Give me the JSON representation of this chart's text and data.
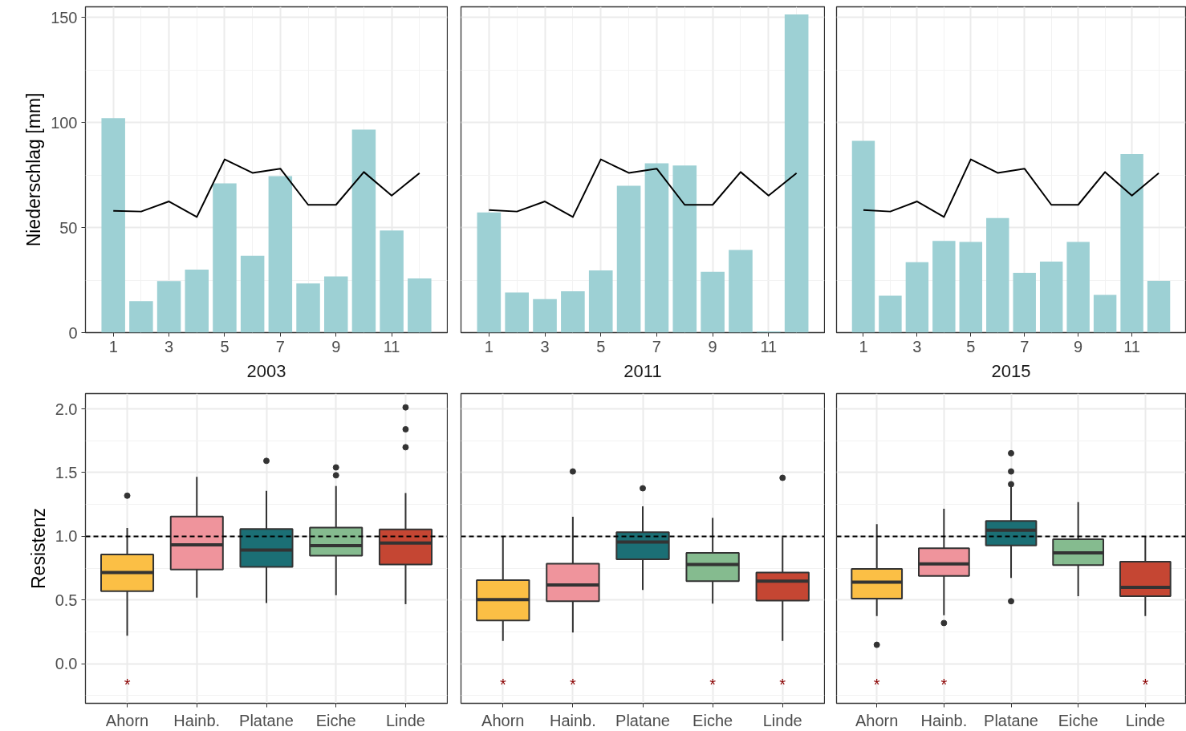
{
  "chart_data": [
    {
      "type": "bar",
      "title": "2003",
      "ylabel": "Niederschlag [mm]",
      "x": [
        1,
        2,
        3,
        4,
        5,
        6,
        7,
        8,
        9,
        10,
        11,
        12
      ],
      "xlim": [
        0,
        13
      ],
      "xticks": [
        1,
        3,
        5,
        7,
        9,
        11
      ],
      "ylim": [
        0,
        155
      ],
      "yticks": [
        0,
        50,
        100,
        150
      ],
      "grid": true,
      "series": [
        {
          "type": "bar",
          "color": "#9dd0d4",
          "values": [
            102,
            15,
            24.5,
            30,
            71,
            36.6,
            74.4,
            23.4,
            26.7,
            96.6,
            48.6,
            25.8
          ]
        },
        {
          "type": "line",
          "color": "#000000",
          "values": [
            57.9,
            57.6,
            62.4,
            55,
            82.4,
            76,
            78,
            60.8,
            60.8,
            76.4,
            65.2,
            75.9
          ]
        }
      ]
    },
    {
      "type": "bar",
      "title": "2011",
      "x": [
        1,
        2,
        3,
        4,
        5,
        6,
        7,
        8,
        9,
        10,
        11,
        12
      ],
      "xlim": [
        0,
        13
      ],
      "xticks": [
        1,
        3,
        5,
        7,
        9,
        11
      ],
      "ylim": [
        0,
        155
      ],
      "yticks": [
        0,
        50,
        100,
        150
      ],
      "grid": true,
      "tick_labels": "x",
      "series": [
        {
          "type": "bar",
          "color": "#9dd0d4",
          "values": [
            57.2,
            19.1,
            15.9,
            19.7,
            29.6,
            69.9,
            80.6,
            79.5,
            28.9,
            39.3,
            0.6,
            151.4
          ]
        },
        {
          "type": "line",
          "color": "#000000",
          "values": [
            58.3,
            57.6,
            62.4,
            55,
            82.4,
            76,
            78,
            60.8,
            60.8,
            76.4,
            65.2,
            75.9
          ]
        }
      ]
    },
    {
      "type": "bar",
      "title": "2015",
      "x": [
        1,
        2,
        3,
        4,
        5,
        6,
        7,
        8,
        9,
        10,
        11,
        12
      ],
      "xlim": [
        0,
        13
      ],
      "xticks": [
        1,
        3,
        5,
        7,
        9,
        11
      ],
      "ylim": [
        0,
        155
      ],
      "yticks": [
        0,
        50,
        100,
        150
      ],
      "grid": true,
      "tick_labels": "x",
      "series": [
        {
          "type": "bar",
          "color": "#9dd0d4",
          "values": [
            91.2,
            17.6,
            33.5,
            43.6,
            43.1,
            54.5,
            28.4,
            33.8,
            43.1,
            17.9,
            84.9,
            24.6
          ]
        },
        {
          "type": "line",
          "color": "#000000",
          "values": [
            58.3,
            57.6,
            62.4,
            55,
            82.4,
            76,
            78,
            60.8,
            60.8,
            76.4,
            65.2,
            75.9
          ]
        }
      ]
    },
    {
      "type": "box",
      "ylabel": "Resistenz",
      "categories": [
        "Ahorn",
        "Hainb.",
        "Platane",
        "Eiche",
        "Linde"
      ],
      "colors": [
        "#fbbf45",
        "#ef949c",
        "#1b6f75",
        "#85bb8f",
        "#c54633"
      ],
      "ylim": [
        -0.31,
        2.12
      ],
      "yticks": [
        {
          "value": 0,
          "label": "0.0"
        },
        0.5,
        {
          "value": 1,
          "label": "1.0"
        },
        1.5,
        {
          "value": 2,
          "label": "2.0"
        }
      ],
      "grid": true,
      "boxes": [
        {
          "low": 0.22,
          "q1": 0.57,
          "median": 0.716,
          "q3": 0.857,
          "high": 1.066,
          "outliers": [
            1.319
          ]
        },
        {
          "low": 0.519,
          "q1": 0.739,
          "median": 0.934,
          "q3": 1.156,
          "high": 1.467
        },
        {
          "low": 0.477,
          "q1": 0.76,
          "median": 0.892,
          "q3": 1.057,
          "high": 1.356,
          "outliers": [
            1.592
          ]
        },
        {
          "low": 0.538,
          "q1": 0.848,
          "median": 0.927,
          "q3": 1.068,
          "high": 1.395,
          "outliers": [
            1.541,
            1.479
          ]
        },
        {
          "low": 0.468,
          "q1": 0.779,
          "median": 0.948,
          "q3": 1.054,
          "high": 1.34,
          "outliers": [
            2.012,
            1.84,
            1.699
          ]
        }
      ],
      "ref_lines": [
        {
          "axis": "y",
          "value": 1,
          "line_style": "dashed",
          "color": "#000000"
        }
      ],
      "value_labels": [
        "*",
        null,
        null,
        null,
        null
      ]
    },
    {
      "type": "box",
      "categories": [
        "Ahorn",
        "Hainb.",
        "Platane",
        "Eiche",
        "Linde"
      ],
      "colors": [
        "#fbbf45",
        "#ef949c",
        "#1b6f75",
        "#85bb8f",
        "#c54633"
      ],
      "ylim": [
        -0.31,
        2.12
      ],
      "yticks": [
        0,
        0.5,
        1,
        1.5,
        2
      ],
      "grid": true,
      "tick_labels": "x",
      "boxes": [
        {
          "low": 0.18,
          "q1": 0.34,
          "median": 0.504,
          "q3": 0.656,
          "high": 1.0
        },
        {
          "low": 0.245,
          "q1": 0.491,
          "median": 0.619,
          "q3": 0.786,
          "high": 1.154,
          "outliers": [
            1.509
          ]
        },
        {
          "low": 0.58,
          "q1": 0.82,
          "median": 0.955,
          "q3": 1.032,
          "high": 1.236,
          "outliers": [
            1.377
          ]
        },
        {
          "low": 0.472,
          "q1": 0.649,
          "median": 0.779,
          "q3": 0.87,
          "high": 1.145
        },
        {
          "low": 0.18,
          "q1": 0.496,
          "median": 0.649,
          "q3": 0.716,
          "high": 0.994,
          "outliers": [
            1.459
          ]
        }
      ],
      "ref_lines": [
        {
          "axis": "y",
          "value": 1,
          "line_style": "dashed",
          "color": "#000000"
        }
      ],
      "value_labels": [
        "*",
        "*",
        null,
        "*",
        "*"
      ]
    },
    {
      "type": "box",
      "categories": [
        "Ahorn",
        "Hainb.",
        "Platane",
        "Eiche",
        "Linde"
      ],
      "colors": [
        "#fbbf45",
        "#ef949c",
        "#1b6f75",
        "#85bb8f",
        "#c54633"
      ],
      "ylim": [
        -0.31,
        2.12
      ],
      "yticks": [
        0,
        0.5,
        1,
        1.5,
        2
      ],
      "grid": true,
      "tick_labels": "x",
      "boxes": [
        {
          "low": 0.374,
          "q1": 0.511,
          "median": 0.641,
          "q3": 0.745,
          "high": 1.095,
          "outliers": [
            0.149
          ]
        },
        {
          "low": 0.381,
          "q1": 0.69,
          "median": 0.784,
          "q3": 0.907,
          "high": 1.216,
          "outliers": [
            0.32
          ]
        },
        {
          "low": 0.673,
          "q1": 0.929,
          "median": 1.048,
          "q3": 1.121,
          "high": 1.392,
          "outliers": [
            1.652,
            1.509,
            1.409,
            0.491
          ]
        },
        {
          "low": 0.53,
          "q1": 0.775,
          "median": 0.87,
          "q3": 0.978,
          "high": 1.268
        },
        {
          "low": 0.374,
          "q1": 0.53,
          "median": 0.6,
          "q3": 0.801,
          "high": 0.996
        }
      ],
      "ref_lines": [
        {
          "axis": "y",
          "value": 1,
          "line_style": "dashed",
          "color": "#000000"
        }
      ],
      "value_labels": [
        "*",
        "*",
        null,
        null,
        "*"
      ]
    }
  ]
}
